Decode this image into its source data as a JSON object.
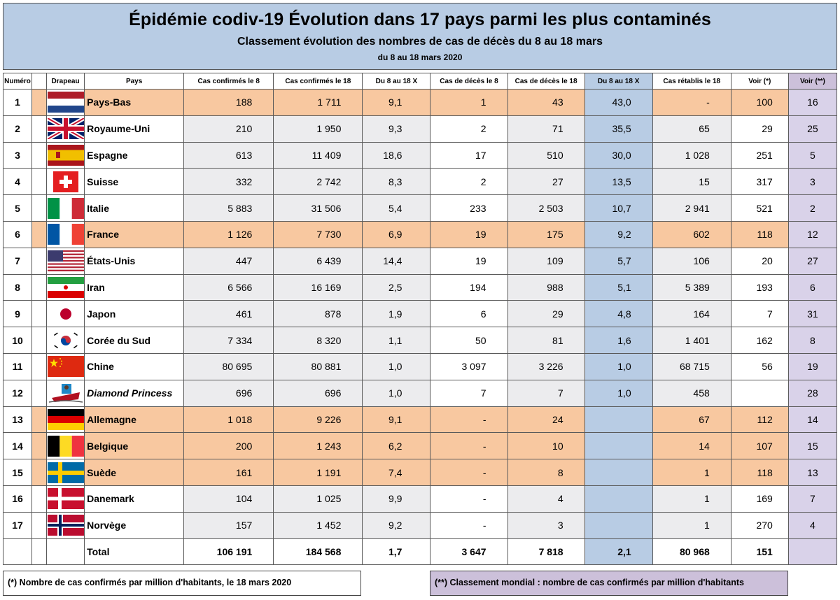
{
  "header": {
    "title": "Épidémie codiv-19 Évolution dans 17 pays parmi les plus contaminés",
    "subtitle": "Classement évolution des nombres de cas de décès du 8 au 18 mars",
    "date": "du 8 au 18 mars 2020"
  },
  "columns": [
    "Numéro",
    "Drapeau",
    "Pays",
    "Cas confirmés le 8",
    "Cas confirmés le 18",
    "Du 8 au 18 X",
    "Cas de décès le 8",
    "Cas de décès le 18",
    "Du 8 au 18 X",
    "Cas rétablis le 18",
    "Voir (*)",
    "Voir (**)"
  ],
  "rows": [
    {
      "n": "1",
      "flag": "netherlands-flag",
      "pays": "Pays-Bas",
      "c8": "188",
      "c18": "1 711",
      "x1": "9,1",
      "d8": "1",
      "d18": "43",
      "x2": "43,0",
      "r18": "-",
      "v1": "100",
      "v2": "16",
      "hl": true,
      "italic": false
    },
    {
      "n": "2",
      "flag": "uk-flag",
      "pays": "Royaume-Uni",
      "c8": "210",
      "c18": "1 950",
      "x1": "9,3",
      "d8": "2",
      "d18": "71",
      "x2": "35,5",
      "r18": "65",
      "v1": "29",
      "v2": "25",
      "hl": false,
      "italic": false
    },
    {
      "n": "3",
      "flag": "spain-flag",
      "pays": "Espagne",
      "c8": "613",
      "c18": "11 409",
      "x1": "18,6",
      "d8": "17",
      "d18": "510",
      "x2": "30,0",
      "r18": "1 028",
      "v1": "251",
      "v2": "5",
      "hl": false,
      "italic": false
    },
    {
      "n": "4",
      "flag": "switzerland-flag",
      "pays": "Suisse",
      "c8": "332",
      "c18": "2 742",
      "x1": "8,3",
      "d8": "2",
      "d18": "27",
      "x2": "13,5",
      "r18": "15",
      "v1": "317",
      "v2": "3",
      "hl": false,
      "italic": false
    },
    {
      "n": "5",
      "flag": "italy-flag",
      "pays": "Italie",
      "c8": "5 883",
      "c18": "31 506",
      "x1": "5,4",
      "d8": "233",
      "d18": "2 503",
      "x2": "10,7",
      "r18": "2 941",
      "v1": "521",
      "v2": "2",
      "hl": false,
      "italic": false
    },
    {
      "n": "6",
      "flag": "france-flag",
      "pays": "France",
      "c8": "1 126",
      "c18": "7 730",
      "x1": "6,9",
      "d8": "19",
      "d18": "175",
      "x2": "9,2",
      "r18": "602",
      "v1": "118",
      "v2": "12",
      "hl": true,
      "italic": false
    },
    {
      "n": "7",
      "flag": "usa-flag",
      "pays": "États-Unis",
      "c8": "447",
      "c18": "6 439",
      "x1": "14,4",
      "d8": "19",
      "d18": "109",
      "x2": "5,7",
      "r18": "106",
      "v1": "20",
      "v2": "27",
      "hl": false,
      "italic": false
    },
    {
      "n": "8",
      "flag": "iran-flag",
      "pays": "Iran",
      "c8": "6 566",
      "c18": "16 169",
      "x1": "2,5",
      "d8": "194",
      "d18": "988",
      "x2": "5,1",
      "r18": "5 389",
      "v1": "193",
      "v2": "6",
      "hl": false,
      "italic": false
    },
    {
      "n": "9",
      "flag": "japan-flag",
      "pays": "Japon",
      "c8": "461",
      "c18": "878",
      "x1": "1,9",
      "d8": "6",
      "d18": "29",
      "x2": "4,8",
      "r18": "164",
      "v1": "7",
      "v2": "31",
      "hl": false,
      "italic": false
    },
    {
      "n": "10",
      "flag": "south-korea-flag",
      "pays": "Corée du Sud",
      "c8": "7 334",
      "c18": "8 320",
      "x1": "1,1",
      "d8": "50",
      "d18": "81",
      "x2": "1,6",
      "r18": "1 401",
      "v1": "162",
      "v2": "8",
      "hl": false,
      "italic": false
    },
    {
      "n": "11",
      "flag": "china-flag",
      "pays": "Chine",
      "c8": "80 695",
      "c18": "80 881",
      "x1": "1,0",
      "d8": "3 097",
      "d18": "3 226",
      "x2": "1,0",
      "r18": "68 715",
      "v1": "56",
      "v2": "19",
      "hl": false,
      "italic": false
    },
    {
      "n": "12",
      "flag": "cruise-ship-icon",
      "pays": "Diamond Princess",
      "c8": "696",
      "c18": "696",
      "x1": "1,0",
      "d8": "7",
      "d18": "7",
      "x2": "1,0",
      "r18": "458",
      "v1": "",
      "v2": "28",
      "hl": false,
      "italic": true
    },
    {
      "n": "13",
      "flag": "germany-flag",
      "pays": "Allemagne",
      "c8": "1 018",
      "c18": "9 226",
      "x1": "9,1",
      "d8": "-",
      "d18": "24",
      "x2": "",
      "r18": "67",
      "v1": "112",
      "v2": "14",
      "hl": true,
      "italic": false
    },
    {
      "n": "14",
      "flag": "belgium-flag",
      "pays": "Belgique",
      "c8": "200",
      "c18": "1 243",
      "x1": "6,2",
      "d8": "-",
      "d18": "10",
      "x2": "",
      "r18": "14",
      "v1": "107",
      "v2": "15",
      "hl": true,
      "italic": false
    },
    {
      "n": "15",
      "flag": "sweden-flag",
      "pays": "Suède",
      "c8": "161",
      "c18": "1 191",
      "x1": "7,4",
      "d8": "-",
      "d18": "8",
      "x2": "",
      "r18": "1",
      "v1": "118",
      "v2": "13",
      "hl": true,
      "italic": false
    },
    {
      "n": "16",
      "flag": "denmark-flag",
      "pays": "Danemark",
      "c8": "104",
      "c18": "1 025",
      "x1": "9,9",
      "d8": "-",
      "d18": "4",
      "x2": "",
      "r18": "1",
      "v1": "169",
      "v2": "7",
      "hl": false,
      "italic": false
    },
    {
      "n": "17",
      "flag": "norway-flag",
      "pays": "Norvège",
      "c8": "157",
      "c18": "1 452",
      "x1": "9,2",
      "d8": "-",
      "d18": "3",
      "x2": "",
      "r18": "1",
      "v1": "270",
      "v2": "4",
      "hl": false,
      "italic": false
    }
  ],
  "total": {
    "label": "Total",
    "c8": "106 191",
    "c18": "184 568",
    "x1": "1,7",
    "d8": "3 647",
    "d18": "7 818",
    "x2": "2,1",
    "r18": "80 968",
    "v1": "151"
  },
  "notes": {
    "left": "(*) Nombre de cas confirmés par million d'habitants, le 18 mars 2020",
    "right": "(**) Classement mondial : nombre de cas confirmés par million d'habitants"
  },
  "colors": {
    "header_bg": "#b8cce4",
    "highlight_orange": "#f8c8a0",
    "blue_col": "#b8cce4",
    "purple_col": "#d9d2e9"
  }
}
